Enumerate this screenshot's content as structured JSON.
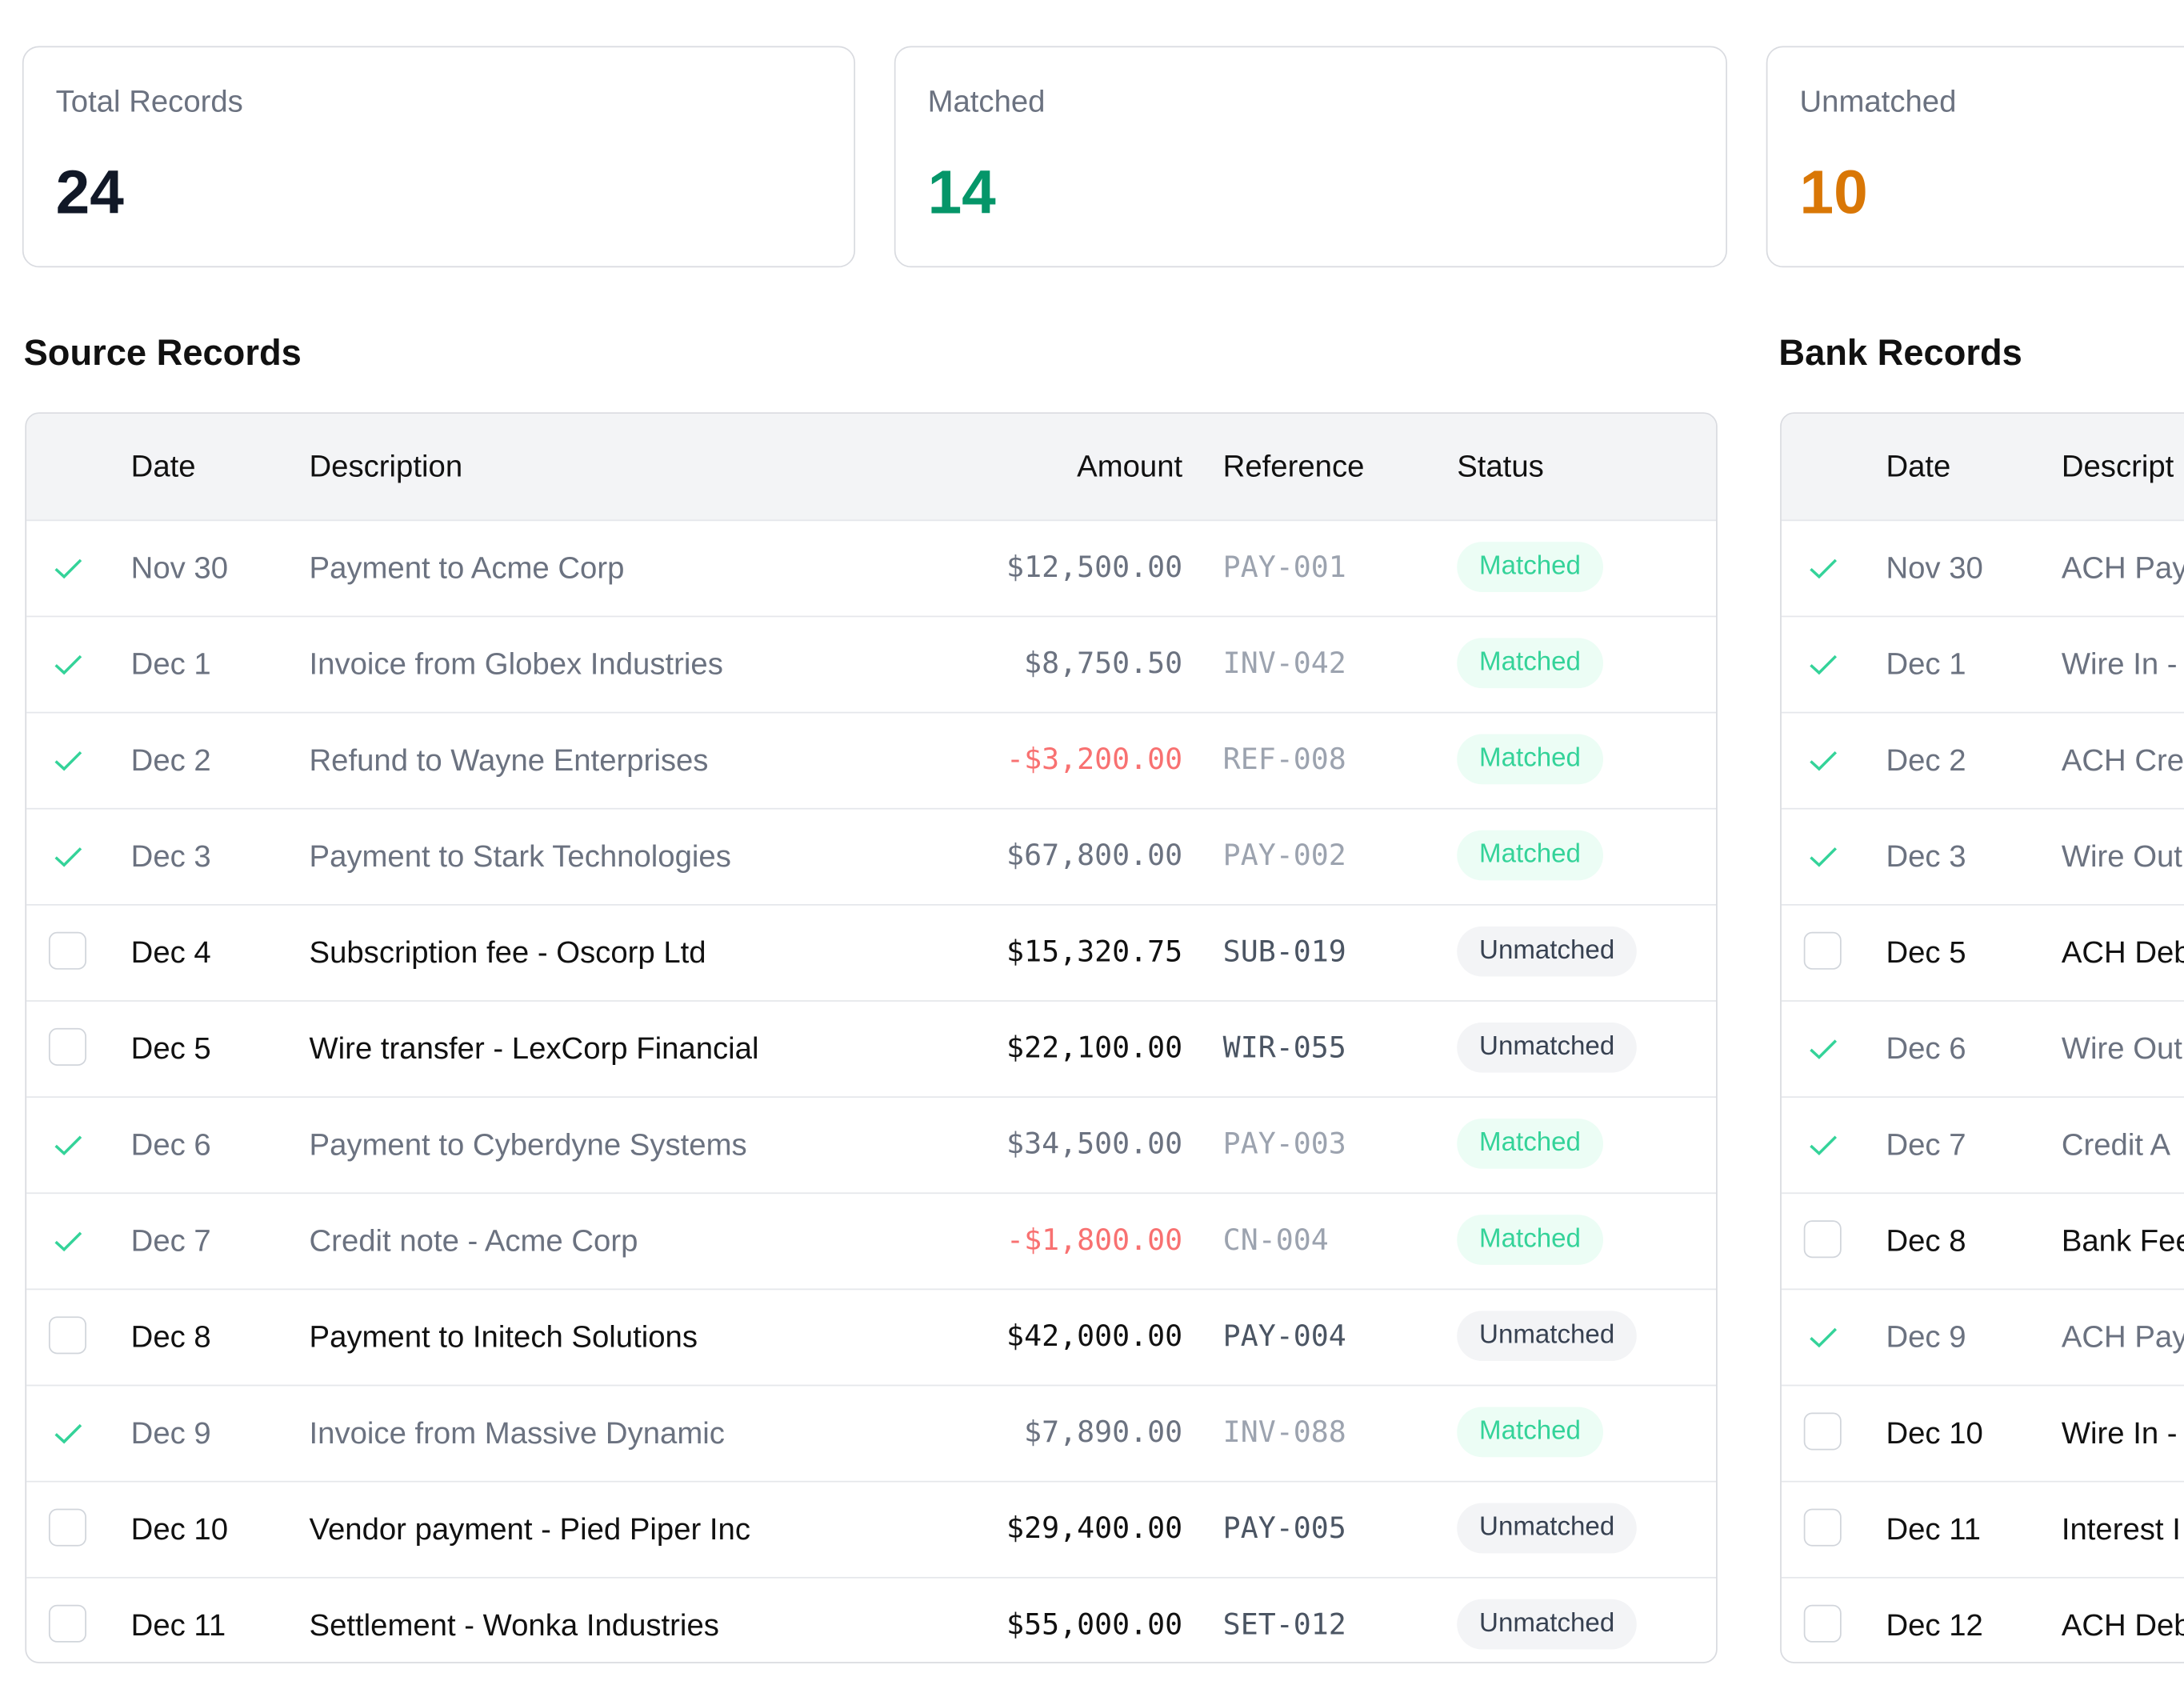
{
  "stats": [
    {
      "label": "Total Records",
      "value": 24,
      "color": "#111827"
    },
    {
      "label": "Matched",
      "value": 14,
      "color": "#059669"
    },
    {
      "label": "Unmatched",
      "value": 10,
      "color": "#d97706"
    }
  ],
  "source": {
    "title": "Source Records",
    "columns": [
      "Date",
      "Description",
      "Amount",
      "Reference",
      "Status"
    ],
    "rows": [
      {
        "checked": true,
        "date": "Nov 30",
        "description": "Payment to Acme Corp",
        "amount": "$12,500.00",
        "reference": "PAY-001",
        "status": "Matched"
      },
      {
        "checked": true,
        "date": "Dec 1",
        "description": "Invoice from Globex Industries",
        "amount": "$8,750.50",
        "reference": "INV-042",
        "status": "Matched"
      },
      {
        "checked": true,
        "date": "Dec 2",
        "description": "Refund to Wayne Enterprises",
        "amount": "-$3,200.00",
        "amount_color": "#f87171",
        "reference": "REF-008",
        "status": "Matched"
      },
      {
        "checked": true,
        "date": "Dec 3",
        "description": "Payment to Stark Technologies",
        "amount": "$67,800.00",
        "reference": "PAY-002",
        "status": "Matched"
      },
      {
        "checked": false,
        "date": "Dec 4",
        "description": "Subscription fee - Oscorp Ltd",
        "amount": "$15,320.75",
        "reference": "SUB-019",
        "status": "Unmatched"
      },
      {
        "checked": false,
        "date": "Dec 5",
        "description": "Wire transfer - LexCorp Financial",
        "amount": "$22,100.00",
        "reference": "WIR-055",
        "status": "Unmatched"
      },
      {
        "checked": true,
        "date": "Dec 6",
        "description": "Payment to Cyberdyne Systems",
        "amount": "$34,500.00",
        "reference": "PAY-003",
        "status": "Matched"
      },
      {
        "checked": true,
        "date": "Dec 7",
        "description": "Credit note - Acme Corp",
        "amount": "-$1,800.00",
        "amount_color": "#f87171",
        "reference": "CN-004",
        "status": "Matched"
      },
      {
        "checked": false,
        "date": "Dec 8",
        "description": "Payment to Initech Solutions",
        "amount": "$42,000.00",
        "reference": "PAY-004",
        "status": "Unmatched"
      },
      {
        "checked": true,
        "date": "Dec 9",
        "description": "Invoice from Massive Dynamic",
        "amount": "$7,890.00",
        "reference": "INV-088",
        "status": "Matched"
      },
      {
        "checked": false,
        "date": "Dec 10",
        "description": "Vendor payment - Pied Piper Inc",
        "amount": "$29,400.00",
        "reference": "PAY-005",
        "status": "Unmatched"
      },
      {
        "checked": false,
        "date": "Dec 11",
        "description": "Settlement - Wonka Industries",
        "amount": "$55,000.00",
        "reference": "SET-012",
        "status": "Unmatched"
      }
    ]
  },
  "bank": {
    "title": "Bank Records",
    "columns": [
      "Date",
      "Descript"
    ],
    "rows": [
      {
        "checked": true,
        "date": "Nov 30",
        "description": "ACH Pay"
      },
      {
        "checked": true,
        "date": "Dec 1",
        "description": "Wire In -"
      },
      {
        "checked": true,
        "date": "Dec 2",
        "description": "ACH Cre"
      },
      {
        "checked": true,
        "date": "Dec 3",
        "description": "Wire Out"
      },
      {
        "checked": false,
        "date": "Dec 5",
        "description": "ACH Deb"
      },
      {
        "checked": true,
        "date": "Dec 6",
        "description": "Wire Out"
      },
      {
        "checked": true,
        "date": "Dec 7",
        "description": "Credit A"
      },
      {
        "checked": false,
        "date": "Dec 8",
        "description": "Bank Fee"
      },
      {
        "checked": true,
        "date": "Dec 9",
        "description": "ACH Pay"
      },
      {
        "checked": false,
        "date": "Dec 10",
        "description": "Wire In -"
      },
      {
        "checked": false,
        "date": "Dec 11",
        "description": "Interest I"
      },
      {
        "checked": false,
        "date": "Dec 12",
        "description": "ACH Deb"
      }
    ]
  }
}
